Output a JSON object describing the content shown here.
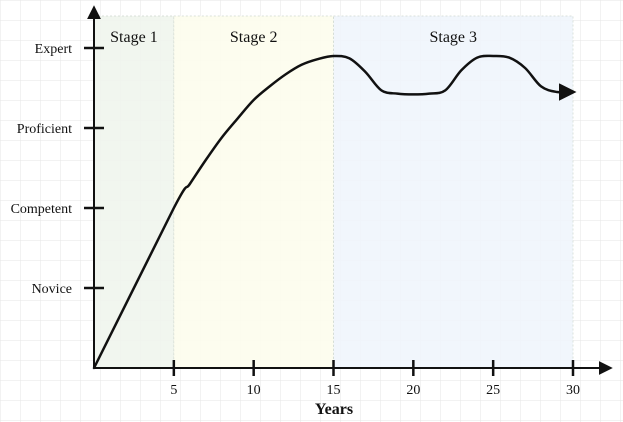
{
  "chart_data": {
    "type": "line",
    "title": "",
    "xlabel": "Years",
    "ylabel": "",
    "xlim": [
      0,
      30
    ],
    "ylim": [
      0,
      4
    ],
    "x_ticks": [
      5,
      10,
      15,
      20,
      25,
      30
    ],
    "y_levels": [
      {
        "label": "Novice",
        "value": 1
      },
      {
        "label": "Competent",
        "value": 2
      },
      {
        "label": "Proficient",
        "value": 3
      },
      {
        "label": "Expert",
        "value": 4
      }
    ],
    "stages": [
      {
        "label": "Stage 1",
        "x_start": 0,
        "x_end": 5,
        "color": "#eef5ec"
      },
      {
        "label": "Stage 2",
        "x_start": 5,
        "x_end": 15,
        "color": "#fdfdec"
      },
      {
        "label": "Stage 3",
        "x_start": 15,
        "x_end": 30,
        "color": "#eef5fc"
      }
    ],
    "series": [
      {
        "points": [
          [
            0,
            0
          ],
          [
            5,
            2
          ],
          [
            6,
            2.3
          ],
          [
            7,
            2.6
          ],
          [
            8,
            2.88
          ],
          [
            9,
            3.12
          ],
          [
            10,
            3.35
          ],
          [
            11,
            3.52
          ],
          [
            12,
            3.67
          ],
          [
            13,
            3.79
          ],
          [
            14,
            3.86
          ],
          [
            15,
            3.9
          ],
          [
            16,
            3.87
          ],
          [
            17,
            3.7
          ],
          [
            18,
            3.47
          ],
          [
            19,
            3.43
          ],
          [
            20,
            3.42
          ],
          [
            21,
            3.43
          ],
          [
            22,
            3.47
          ],
          [
            23,
            3.72
          ],
          [
            24,
            3.88
          ],
          [
            25,
            3.9
          ],
          [
            26,
            3.88
          ],
          [
            27,
            3.75
          ],
          [
            28,
            3.52
          ],
          [
            29,
            3.45
          ],
          [
            30,
            3.45
          ]
        ]
      }
    ],
    "grid": true,
    "colors": {
      "line": "#111111",
      "axis": "#111111",
      "grid": "#e6e6e6"
    }
  }
}
